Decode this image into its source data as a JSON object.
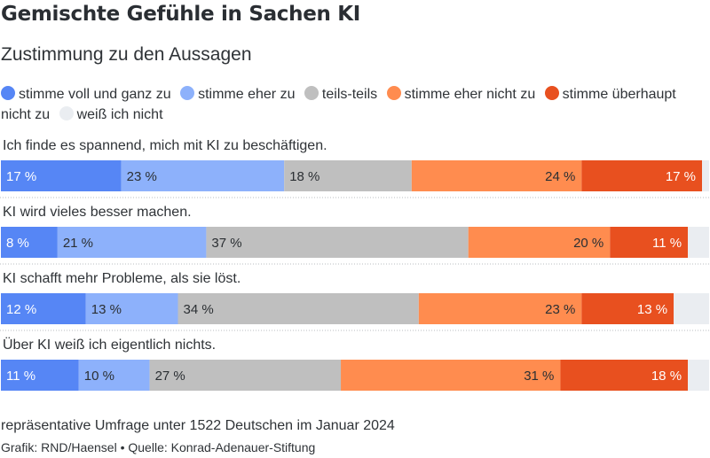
{
  "title": "Gemischte Gefühle in Sachen KI",
  "subtitle": "Zustimmung zu den Aussagen",
  "note": "repräsentative Umfrage unter 1522 Deutschen im Januar 2024",
  "credit": "Grafik: RND/Haensel • Quelle: Konrad-Adenauer-Stiftung",
  "chart_data": {
    "type": "bar",
    "orientation": "horizontal",
    "stacked": true,
    "unit": "%",
    "categories": [
      "Ich finde es spannend, mich mit KI zu beschäftigen.",
      "KI wird vieles besser machen.",
      "KI schafft mehr Probleme, als sie löst.",
      "Über KI weiß ich eigentlich nichts."
    ],
    "series": [
      {
        "name": "stimme voll und ganz zu",
        "color": "#5686f5",
        "values": [
          17,
          8,
          12,
          11
        ]
      },
      {
        "name": "stimme eher zu",
        "color": "#8db1fb",
        "values": [
          23,
          21,
          13,
          10
        ]
      },
      {
        "name": "teils-teils",
        "color": "#bfbfbf",
        "values": [
          18,
          37,
          34,
          27
        ]
      },
      {
        "name": "stimme eher nicht zu",
        "color": "#ff8c4f",
        "values": [
          24,
          20,
          23,
          31
        ]
      },
      {
        "name": "stimme überhaupt nicht zu",
        "color": "#e8501f",
        "values": [
          17,
          11,
          13,
          18
        ]
      },
      {
        "name": "weiß ich nicht",
        "color": "#eaedf1",
        "values": [
          1,
          3,
          5,
          3
        ]
      }
    ],
    "labels_shown_for_series": [
      "stimme voll und ganz zu",
      "stimme eher zu",
      "teils-teils",
      "stimme eher nicht zu",
      "stimme überhaupt nicht zu"
    ],
    "legend_position": "top-left"
  }
}
